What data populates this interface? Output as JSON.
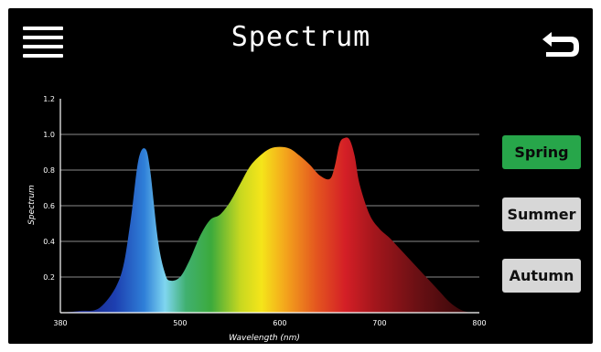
{
  "header": {
    "title": "Spectrum",
    "menu_icon": "hamburger-menu-icon",
    "back_icon": "back-arrow-icon"
  },
  "seasons": {
    "items": [
      {
        "label": "Spring",
        "active": true
      },
      {
        "label": "Summer",
        "active": false
      },
      {
        "label": "Autumn",
        "active": false
      }
    ],
    "active_color": "#27a64a",
    "idle_color": "#d7d7d7"
  },
  "chart_data": {
    "type": "area",
    "xlabel": "Wavelength (nm)",
    "ylabel": "Spectrum",
    "xlim": [
      380,
      800
    ],
    "ylim": [
      0,
      1.2
    ],
    "x_ticks": [
      "380",
      "500",
      "600",
      "700",
      "800"
    ],
    "y_ticks": [
      "0.2",
      "0.4",
      "0.6",
      "0.8",
      "1.0",
      "1.2"
    ],
    "grid": true,
    "series": [
      {
        "x": [
          380,
          400,
          420,
          440,
          450,
          458,
          465,
          470,
          478,
          485,
          490,
          500,
          510,
          520,
          530,
          540,
          550,
          560,
          570,
          580,
          590,
          600,
          610,
          620,
          630,
          640,
          650,
          655,
          660,
          665,
          670,
          675,
          680,
          690,
          700,
          710,
          720,
          730,
          740,
          750,
          760,
          770,
          780,
          790
        ],
        "values": [
          0.0,
          0.01,
          0.03,
          0.2,
          0.5,
          0.85,
          0.92,
          0.8,
          0.4,
          0.22,
          0.18,
          0.2,
          0.3,
          0.43,
          0.52,
          0.55,
          0.62,
          0.72,
          0.82,
          0.88,
          0.92,
          0.93,
          0.92,
          0.88,
          0.83,
          0.77,
          0.75,
          0.82,
          0.95,
          0.98,
          0.97,
          0.88,
          0.72,
          0.55,
          0.47,
          0.42,
          0.36,
          0.3,
          0.24,
          0.18,
          0.12,
          0.06,
          0.02,
          0.0
        ]
      }
    ]
  }
}
